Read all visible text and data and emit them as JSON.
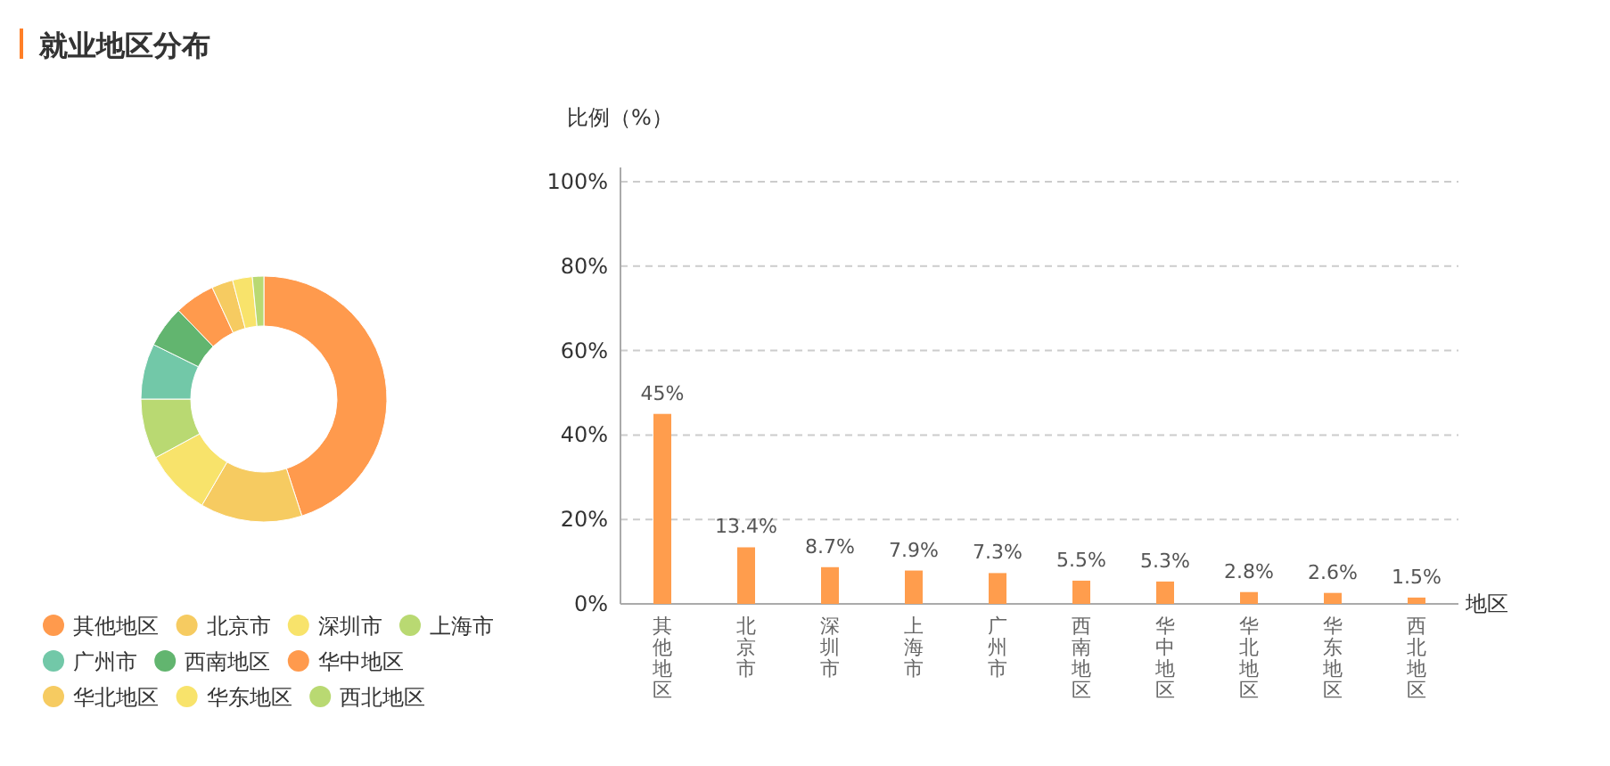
{
  "chart_data": [
    {
      "type": "donut",
      "title": "就业地区分布",
      "categories": [
        "其他地区",
        "北京市",
        "深圳市",
        "上海市",
        "广州市",
        "西南地区",
        "华中地区",
        "华北地区",
        "华东地区",
        "西北地区"
      ],
      "values": [
        45,
        13.4,
        8.7,
        7.9,
        7.3,
        5.5,
        5.3,
        2.8,
        2.6,
        1.5
      ],
      "colors": [
        "#ff9a4d",
        "#f6cb61",
        "#f8e36b",
        "#b9d972",
        "#72c8a8",
        "#62b56f",
        "#ff9a4d",
        "#f6cb61",
        "#f8e36b",
        "#b9d972"
      ],
      "legend": "bottom"
    },
    {
      "type": "bar",
      "ylabel": "比例（%）",
      "xlabel": "地区",
      "categories": [
        "其他地区",
        "北京市",
        "深圳市",
        "上海市",
        "广州市",
        "西南地区",
        "华中地区",
        "华北地区",
        "华东地区",
        "西北地区"
      ],
      "values": [
        45,
        13.4,
        8.7,
        7.9,
        7.3,
        5.5,
        5.3,
        2.8,
        2.6,
        1.5
      ],
      "value_labels": [
        "45%",
        "13.4%",
        "8.7%",
        "7.9%",
        "7.3%",
        "5.5%",
        "5.3%",
        "2.8%",
        "2.6%",
        "1.5%"
      ],
      "color": "#ff9d4d",
      "ylim": [
        0,
        100
      ],
      "yticks": [
        {
          "value": 0,
          "label": "0%"
        },
        {
          "value": 20,
          "label": "20%"
        },
        {
          "value": 40,
          "label": "40%"
        },
        {
          "value": 60,
          "label": "60%"
        },
        {
          "value": 80,
          "label": "80%"
        },
        {
          "value": 100,
          "label": "100%"
        }
      ],
      "grid": "y"
    }
  ]
}
